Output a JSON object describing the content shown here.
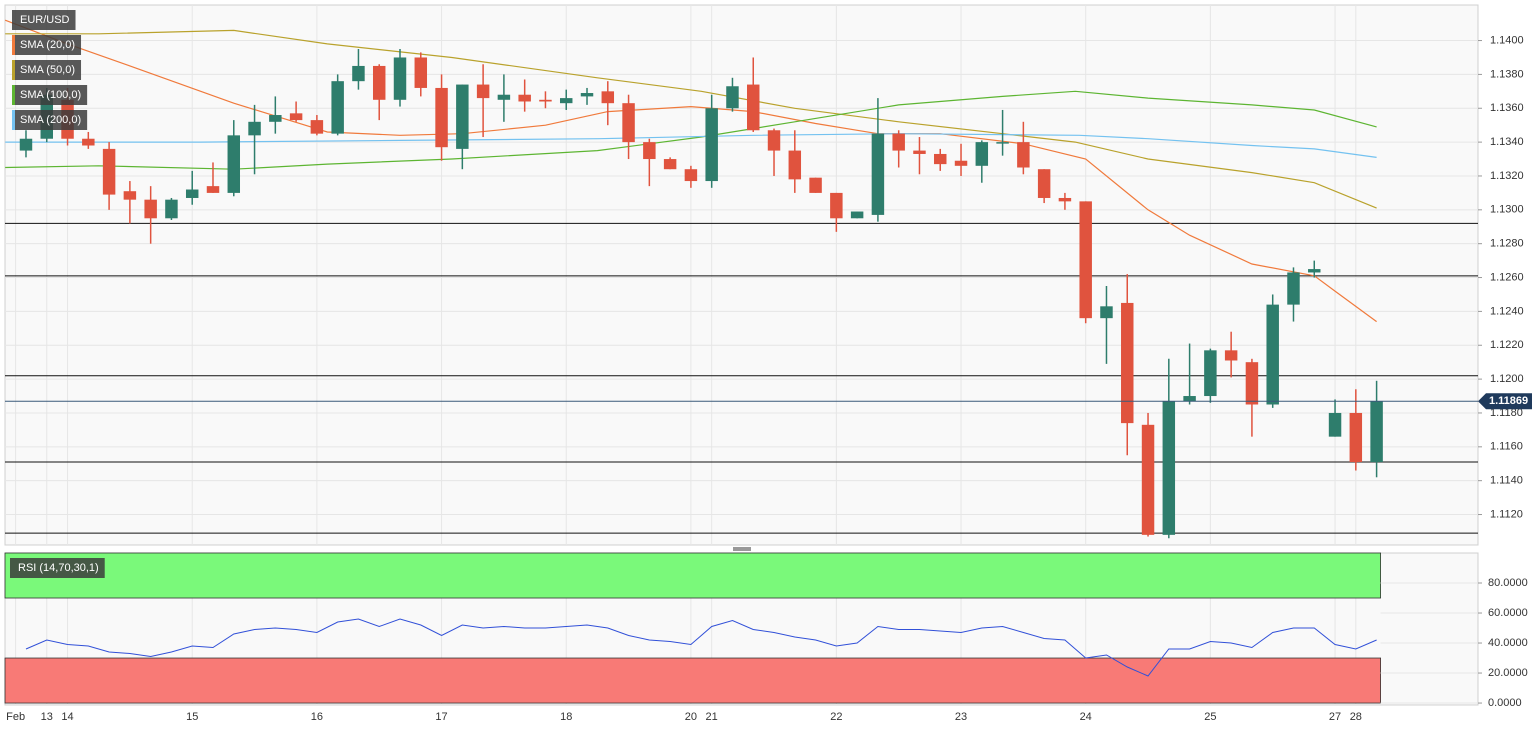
{
  "chart_data": [
    {
      "type": "candlestick",
      "xlim": [
        -1.01,
        69.88
      ],
      "ylim": [
        1.1102,
        1.1421
      ],
      "yticks": [
        {
          "value": 1.112,
          "label": "1.1120"
        },
        {
          "value": 1.114,
          "label": "1.1140"
        },
        {
          "value": 1.116,
          "label": "1.1160"
        },
        {
          "value": 1.118,
          "label": "1.1180"
        },
        {
          "value": 1.12,
          "label": "1.1200"
        },
        {
          "value": 1.122,
          "label": "1.1220"
        },
        {
          "value": 1.124,
          "label": "1.1240"
        },
        {
          "value": 1.126,
          "label": "1.1260"
        },
        {
          "value": 1.128,
          "label": "1.1280"
        },
        {
          "value": 1.13,
          "label": "1.1300"
        },
        {
          "value": 1.132,
          "label": "1.1320"
        },
        {
          "value": 1.134,
          "label": "1.1340"
        },
        {
          "value": 1.136,
          "label": "1.1360"
        },
        {
          "value": 1.138,
          "label": "1.1380"
        },
        {
          "value": 1.14,
          "label": "1.1400"
        }
      ],
      "grid": true,
      "up_color": "#2e7d6c",
      "down_color": "#e0533e",
      "series": [
        {
          "name": "EUR/USD",
          "open": [
            1.1335,
            1.1342,
            1.1365,
            1.1342,
            1.1336,
            1.1311,
            1.1306,
            1.1295,
            1.1307,
            1.1314,
            1.131,
            1.1344,
            1.1352,
            1.1357,
            1.1353,
            1.1345,
            1.1376,
            1.1385,
            1.1365,
            1.139,
            1.1372,
            1.1336,
            1.1374,
            1.1365,
            1.1368,
            1.1365,
            1.1363,
            1.1367,
            1.137,
            1.1363,
            1.134,
            1.133,
            1.1324,
            1.1317,
            1.136,
            1.1374,
            1.1347,
            1.1335,
            1.1319,
            1.131,
            1.1295,
            1.1297,
            1.1345,
            1.1335,
            1.1333,
            1.1329,
            1.1326,
            1.134,
            1.134,
            1.1324,
            1.1307,
            1.1305,
            1.1236,
            1.1245,
            1.1173,
            1.1108,
            1.1187,
            1.119,
            1.1217,
            1.121,
            1.1185,
            1.1244,
            1.1263,
            1.1166,
            1.118,
            1.1151
          ],
          "high": [
            1.1347,
            1.1372,
            1.1372,
            1.1346,
            1.134,
            1.1317,
            1.1314,
            1.1307,
            1.1323,
            1.1328,
            1.1353,
            1.1362,
            1.1367,
            1.1364,
            1.1356,
            1.138,
            1.1395,
            1.1386,
            1.1395,
            1.1393,
            1.138,
            1.1374,
            1.1386,
            1.138,
            1.1377,
            1.137,
            1.1371,
            1.1372,
            1.1376,
            1.1368,
            1.1342,
            1.1331,
            1.1326,
            1.1368,
            1.1378,
            1.139,
            1.1348,
            1.1347,
            1.1319,
            1.131,
            1.1299,
            1.1366,
            1.1347,
            1.1343,
            1.1336,
            1.1339,
            1.1341,
            1.1359,
            1.1352,
            1.1324,
            1.131,
            1.1305,
            1.1255,
            1.1262,
            1.118,
            1.1212,
            1.1221,
            1.1218,
            1.1228,
            1.1212,
            1.125,
            1.1266,
            1.127,
            1.1188,
            1.1194,
            1.1199
          ],
          "low": [
            1.1331,
            1.134,
            1.1338,
            1.1336,
            1.13,
            1.1292,
            1.128,
            1.1294,
            1.1303,
            1.131,
            1.1308,
            1.1321,
            1.1345,
            1.1352,
            1.1344,
            1.1344,
            1.1371,
            1.1353,
            1.1361,
            1.1367,
            1.1329,
            1.1324,
            1.1343,
            1.1352,
            1.1358,
            1.136,
            1.1359,
            1.1362,
            1.135,
            1.133,
            1.1314,
            1.1324,
            1.1313,
            1.1313,
            1.1358,
            1.1346,
            1.132,
            1.131,
            1.131,
            1.1287,
            1.1295,
            1.1293,
            1.1325,
            1.1321,
            1.1323,
            1.132,
            1.1316,
            1.1332,
            1.1321,
            1.1304,
            1.13,
            1.1233,
            1.1209,
            1.1155,
            1.1107,
            1.1106,
            1.1185,
            1.1186,
            1.1201,
            1.1166,
            1.1183,
            1.1234,
            1.126,
            1.1166,
            1.1146,
            1.1142
          ],
          "close": [
            1.1342,
            1.1368,
            1.1342,
            1.1338,
            1.1309,
            1.1306,
            1.1295,
            1.1306,
            1.1312,
            1.131,
            1.1344,
            1.1352,
            1.1356,
            1.1353,
            1.1345,
            1.1376,
            1.1385,
            1.1365,
            1.139,
            1.1372,
            1.1337,
            1.1374,
            1.1366,
            1.1368,
            1.1364,
            1.1364,
            1.1366,
            1.1369,
            1.1363,
            1.134,
            1.133,
            1.1324,
            1.1317,
            1.136,
            1.1373,
            1.1347,
            1.1335,
            1.1318,
            1.131,
            1.1295,
            1.1299,
            1.1345,
            1.1335,
            1.1333,
            1.1327,
            1.1326,
            1.134,
            1.134,
            1.1325,
            1.1307,
            1.1305,
            1.1236,
            1.1243,
            1.1174,
            1.1108,
            1.1187,
            1.119,
            1.1217,
            1.1211,
            1.1185,
            1.1244,
            1.1263,
            1.1265,
            1.118,
            1.1151,
            1.1187
          ]
        }
      ],
      "lines": [
        {
          "name": "SMA (20,0)",
          "color": "#f07a3c",
          "x": [
            -1,
            2,
            5,
            10,
            14.5,
            18,
            21,
            25,
            28,
            32,
            35,
            38,
            41,
            44,
            48,
            51,
            54,
            56,
            59,
            62,
            63,
            65
          ],
          "values": [
            1.1412,
            1.1398,
            1.1385,
            1.1363,
            1.1346,
            1.1344,
            1.1345,
            1.135,
            1.1358,
            1.1361,
            1.1358,
            1.1351,
            1.1345,
            1.1345,
            1.1339,
            1.133,
            1.13,
            1.1285,
            1.1268,
            1.1261,
            1.1252,
            1.1234
          ]
        },
        {
          "name": "SMA (50,0)",
          "color": "#b9a22c",
          "x": [
            -1,
            3.5,
            10,
            14.5,
            20.5,
            27.5,
            32.5,
            37,
            42,
            47,
            50.5,
            54,
            59,
            62,
            65
          ],
          "values": [
            1.1404,
            1.1404,
            1.1406,
            1.1398,
            1.139,
            1.1378,
            1.137,
            1.136,
            1.1352,
            1.1345,
            1.134,
            1.133,
            1.1322,
            1.1316,
            1.1301
          ]
        },
        {
          "name": "SMA (100,0)",
          "color": "#5db532",
          "x": [
            -1,
            3.5,
            10,
            14.5,
            20.5,
            27.5,
            32.5,
            37,
            42,
            47,
            50.5,
            54,
            59,
            62,
            65
          ],
          "values": [
            1.1325,
            1.1326,
            1.1324,
            1.1327,
            1.133,
            1.1335,
            1.1343,
            1.1352,
            1.1362,
            1.1367,
            1.137,
            1.1366,
            1.1362,
            1.1359,
            1.1349
          ]
        },
        {
          "name": "SMA (200,0)",
          "color": "#74c2f0",
          "x": [
            -1,
            8.4,
            18,
            27.6,
            35,
            42,
            50.7,
            54,
            59,
            62,
            65
          ],
          "values": [
            1.134,
            1.134,
            1.1341,
            1.1342,
            1.1344,
            1.1345,
            1.1344,
            1.1342,
            1.1338,
            1.1336,
            1.1331
          ]
        }
      ],
      "levels": [
        1.1292,
        1.1261,
        1.1202,
        1.1151,
        1.1109
      ],
      "last_price": 1.11869
    },
    {
      "type": "line",
      "xlim": [
        -1.01,
        69.88
      ],
      "ylim": [
        -1.3,
        100
      ],
      "yticks": [
        {
          "value": 0,
          "label": "0.0000"
        },
        {
          "value": 20,
          "label": "20.0000"
        },
        {
          "value": 40,
          "label": "40.0000"
        },
        {
          "value": 60,
          "label": "60.0000"
        },
        {
          "value": 80,
          "label": "80.0000"
        }
      ],
      "xticks": [
        {
          "value": -0.5,
          "label": "Feb"
        },
        {
          "value": 1,
          "label": "13"
        },
        {
          "value": 2,
          "label": "14"
        },
        {
          "value": 8,
          "label": "15"
        },
        {
          "value": 14,
          "label": "16"
        },
        {
          "value": 20,
          "label": "17"
        },
        {
          "value": 26,
          "label": "18"
        },
        {
          "value": 32,
          "label": "20"
        },
        {
          "value": 33,
          "label": "21"
        },
        {
          "value": 39,
          "label": "22"
        },
        {
          "value": 45,
          "label": "23"
        },
        {
          "value": 51,
          "label": "24"
        },
        {
          "value": 57,
          "label": "25"
        },
        {
          "value": 63,
          "label": "27"
        },
        {
          "value": 64,
          "label": "28"
        }
      ],
      "bands": [
        {
          "from": 70,
          "to": 100,
          "color": "#7af97a"
        },
        {
          "from": 0,
          "to": 30,
          "color": "#f87a76"
        }
      ],
      "series": [
        {
          "name": "RSI (14,70,30,1)",
          "color": "#3150d8",
          "values": [
            36,
            42,
            39,
            38,
            34,
            33,
            31,
            34,
            38,
            37,
            46,
            49,
            50,
            49,
            47,
            54,
            56,
            51,
            56,
            52,
            45,
            52,
            50,
            51,
            50,
            50,
            51,
            52,
            50,
            45,
            42,
            41,
            39,
            51,
            55,
            49,
            47,
            44,
            42,
            38,
            40,
            51,
            49,
            49,
            48,
            47,
            50,
            51,
            47,
            43,
            42,
            30,
            32,
            24,
            18,
            36,
            36,
            41,
            40,
            37,
            47,
            50,
            50,
            39,
            36,
            42
          ]
        }
      ]
    }
  ]
}
